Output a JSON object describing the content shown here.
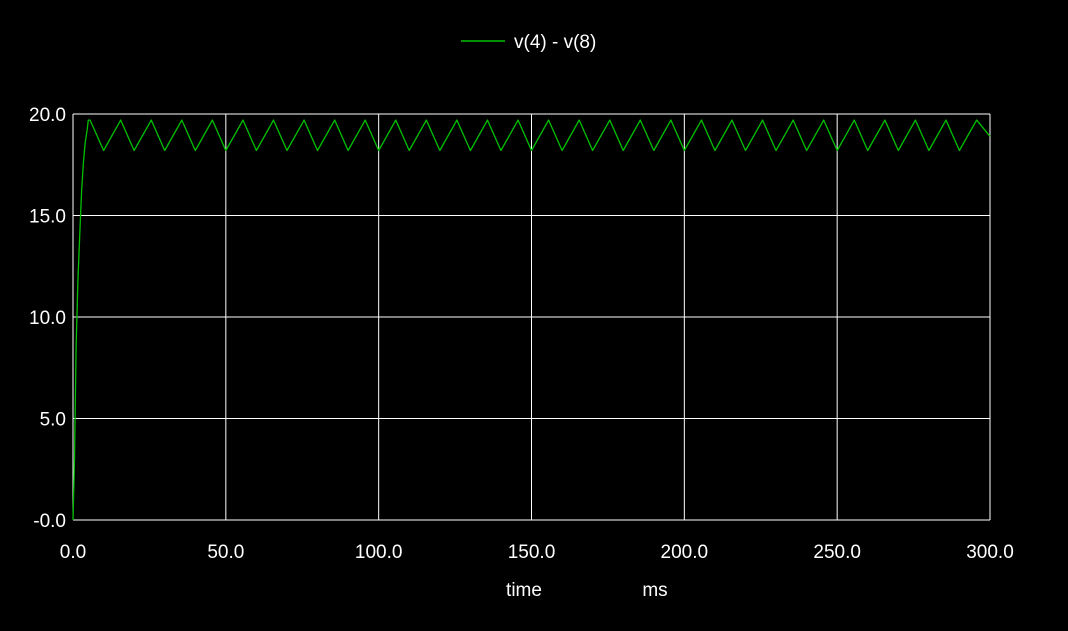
{
  "chart_data": {
    "type": "line",
    "title": "",
    "xlabel": "time",
    "xunit": "ms",
    "ylabel": "",
    "xlim": [
      0,
      300
    ],
    "ylim": [
      0,
      20
    ],
    "grid": true,
    "legend": {
      "placement": "top-center",
      "entries": [
        "v(4) - v(8)"
      ]
    },
    "x_ticks": [
      "0.0",
      "50.0",
      "100.0",
      "150.0",
      "200.0",
      "250.0",
      "300.0"
    ],
    "y_ticks": [
      "-0.0",
      "5.0",
      "10.0",
      "15.0",
      "20.0"
    ],
    "colors": {
      "background": "#000000",
      "grid": "#ffffff",
      "axis": "#ffffff",
      "series": "#00c000"
    },
    "series": [
      {
        "name": "v(4) - v(8)",
        "x": [
          0,
          0.5,
          1.0,
          1.6,
          2.2,
          2.8,
          3.4,
          4.0,
          4.6,
          5.0,
          5.6,
          10.0,
          15.6,
          20.0,
          25.6,
          30.0,
          35.6,
          40.0,
          45.6,
          50.0,
          55.6,
          60.0,
          65.6,
          70.0,
          75.6,
          80.0,
          85.6,
          90.0,
          95.6,
          100.0,
          105.6,
          110.0,
          115.6,
          120.0,
          125.6,
          130.0,
          135.6,
          140.0,
          145.6,
          150.0,
          155.6,
          160.0,
          165.6,
          170.0,
          175.6,
          180.0,
          185.6,
          190.0,
          195.6,
          200.0,
          205.6,
          210.0,
          215.6,
          220.0,
          225.6,
          230.0,
          235.6,
          240.0,
          245.6,
          250.0,
          255.6,
          260.0,
          265.6,
          270.0,
          275.6,
          280.0,
          285.6,
          290.0,
          295.6,
          300.0
        ],
        "y": [
          0.0,
          3.0,
          8.5,
          11.8,
          14.0,
          16.2,
          17.6,
          18.6,
          19.2,
          19.7,
          19.7,
          18.2,
          19.7,
          18.2,
          19.7,
          18.2,
          19.7,
          18.2,
          19.7,
          18.2,
          19.7,
          18.2,
          19.7,
          18.2,
          19.7,
          18.2,
          19.7,
          18.2,
          19.7,
          18.2,
          19.7,
          18.2,
          19.7,
          18.2,
          19.7,
          18.2,
          19.7,
          18.2,
          19.7,
          18.2,
          19.7,
          18.2,
          19.7,
          18.2,
          19.7,
          18.2,
          19.7,
          18.2,
          19.7,
          18.2,
          19.7,
          18.2,
          19.7,
          18.2,
          19.7,
          18.2,
          19.7,
          18.2,
          19.7,
          18.2,
          19.7,
          18.2,
          19.7,
          18.2,
          19.7,
          18.2,
          19.7,
          18.2,
          19.7,
          18.9
        ]
      }
    ]
  }
}
